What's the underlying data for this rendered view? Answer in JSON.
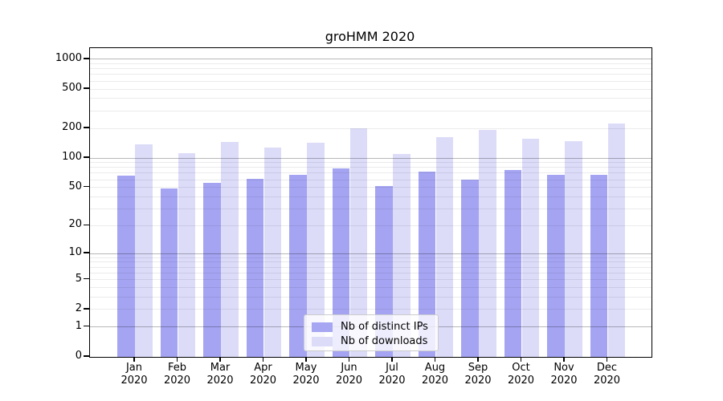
{
  "title": "groHMM 2020",
  "colors": {
    "ips_bar": "#8a8aef",
    "downloads_bar": "#d2d2f7",
    "ips_legend": "#a6a6f3",
    "downloads_legend": "#dcdcf9",
    "grid_major": "rgba(0,0,0,0.28)",
    "grid_minor": "rgba(0,0,0,0.08)",
    "axis_frame": "#000000"
  },
  "legend": {
    "items": [
      {
        "label": "Nb of distinct IPs",
        "key": "ips"
      },
      {
        "label": "Nb of downloads",
        "key": "downloads"
      }
    ]
  },
  "chart_data": {
    "type": "bar",
    "title": "groHMM 2020",
    "categories": [
      "Jan 2020",
      "Feb 2020",
      "Mar 2020",
      "Apr 2020",
      "May 2020",
      "Jun 2020",
      "Jul 2020",
      "Aug 2020",
      "Sep 2020",
      "Oct 2020",
      "Nov 2020",
      "Dec 2020"
    ],
    "x_tick_months": [
      "Jan",
      "Feb",
      "Mar",
      "Apr",
      "May",
      "Jun",
      "Jul",
      "Aug",
      "Sep",
      "Oct",
      "Nov",
      "Dec"
    ],
    "x_tick_year": "2020",
    "series": [
      {
        "name": "Nb of distinct IPs",
        "values": [
          66,
          49,
          56,
          61,
          67,
          79,
          52,
          73,
          60,
          76,
          67,
          68
        ]
      },
      {
        "name": "Nb of downloads",
        "values": [
          137,
          113,
          145,
          127,
          144,
          202,
          110,
          164,
          192,
          157,
          149,
          224
        ]
      }
    ],
    "y_scale": "log10(value+1)",
    "y_ticks": [
      0,
      1,
      2,
      5,
      10,
      20,
      50,
      100,
      200,
      500,
      1000
    ],
    "y_major_gridlines": [
      1,
      10,
      100,
      1000
    ],
    "y_minor_gridlines": [
      2,
      3,
      4,
      5,
      6,
      7,
      8,
      9,
      20,
      30,
      40,
      50,
      60,
      70,
      80,
      90,
      200,
      300,
      400,
      500,
      600,
      700,
      800,
      900
    ],
    "ylim": [
      0,
      1300
    ],
    "grid": "on",
    "legend_position": "lower center inside"
  }
}
